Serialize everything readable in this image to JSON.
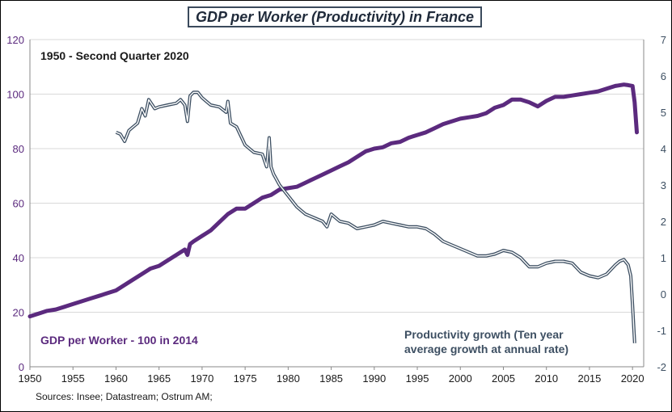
{
  "chart_data": {
    "type": "line",
    "title": "GDP per Worker (Productivity) in France",
    "subtitle": "1950 - Second Quarter 2020",
    "source": "Sources: Insee; Datastream; Ostrum AM;",
    "x_ticks": [
      "1950",
      "1955",
      "1960",
      "1965",
      "1970",
      "1975",
      "1980",
      "1985",
      "1990",
      "1995",
      "2000",
      "2005",
      "2010",
      "2015",
      "2020"
    ],
    "xlim": [
      1950,
      2021.3
    ],
    "y_left": {
      "ylim": [
        0,
        120
      ],
      "ticks": [
        "0",
        "20",
        "40",
        "60",
        "80",
        "100",
        "120"
      ]
    },
    "y_right": {
      "ylim": [
        -2,
        7
      ],
      "ticks": [
        "-2",
        "-1",
        "0",
        "1",
        "2",
        "3",
        "4",
        "5",
        "6",
        "7"
      ]
    },
    "grid": true,
    "series": [
      {
        "name": "GDP per Worker - 100 in 2014",
        "axis": "left",
        "color": "#5b2a7e",
        "x": [
          1950,
          1951,
          1952,
          1953,
          1954,
          1955,
          1956,
          1957,
          1958,
          1959,
          1960,
          1961,
          1962,
          1963,
          1964,
          1965,
          1966,
          1967,
          1968,
          1968.3,
          1968.6,
          1969,
          1970,
          1971,
          1972,
          1973,
          1974,
          1975,
          1976,
          1977,
          1978,
          1979,
          1980,
          1981,
          1982,
          1983,
          1984,
          1985,
          1986,
          1987,
          1988,
          1989,
          1990,
          1991,
          1992,
          1993,
          1994,
          1995,
          1996,
          1997,
          1998,
          1999,
          2000,
          2001,
          2002,
          2003,
          2004,
          2005,
          2006,
          2007,
          2008,
          2009,
          2010,
          2011,
          2012,
          2013,
          2014,
          2015,
          2016,
          2017,
          2018,
          2019,
          2019.5,
          2020,
          2020.25,
          2020.5
        ],
        "values": [
          18.5,
          19.5,
          20.5,
          21,
          22,
          23,
          24,
          25,
          26,
          27,
          28,
          30,
          32,
          34,
          36,
          37,
          39,
          41,
          43,
          41,
          45,
          46,
          48,
          50,
          53,
          56,
          58,
          58,
          60,
          62,
          63,
          65,
          65.5,
          66,
          67.5,
          69,
          70.5,
          72,
          73.5,
          75,
          77,
          79,
          80,
          80.5,
          82,
          82.5,
          84,
          85,
          86,
          87.5,
          89,
          90,
          91,
          91.5,
          92,
          93,
          95,
          96,
          98,
          98,
          97,
          95.5,
          97.5,
          99,
          99,
          99.5,
          100,
          100.5,
          101,
          102,
          103,
          103.5,
          103.3,
          103,
          97,
          86
        ]
      },
      {
        "name": "Productivity growth (Ten year average growth at annual rate)",
        "axis": "right",
        "color": "#3d4f62",
        "x": [
          1960,
          1960.5,
          1961,
          1961.5,
          1962,
          1962.5,
          1963,
          1963.4,
          1963.8,
          1964.5,
          1965,
          1966,
          1967,
          1967.5,
          1968,
          1968.3,
          1968.6,
          1969,
          1969.5,
          1970,
          1971,
          1972,
          1972.8,
          1973,
          1973.3,
          1974,
          1975,
          1976,
          1977,
          1977.5,
          1977.8,
          1978,
          1978.3,
          1979,
          1980,
          1981,
          1982,
          1983,
          1984,
          1984.5,
          1985,
          1986,
          1987,
          1988,
          1989,
          1990,
          1991,
          1992,
          1993,
          1994,
          1995,
          1996,
          1997,
          1998,
          1999,
          2000,
          2001,
          2002,
          2003,
          2004,
          2005,
          2006,
          2007,
          2008,
          2009,
          2010,
          2011,
          2012,
          2013,
          2014,
          2015,
          2016,
          2017,
          2018,
          2018.5,
          2019,
          2019.5,
          2019.8,
          2020,
          2020.25
        ],
        "values": [
          4.45,
          4.4,
          4.2,
          4.5,
          4.6,
          4.7,
          5.1,
          4.9,
          5.35,
          5.1,
          5.15,
          5.2,
          5.25,
          5.35,
          5.2,
          4.75,
          5.45,
          5.55,
          5.55,
          5.4,
          5.2,
          5.15,
          5.0,
          5.3,
          4.7,
          4.6,
          4.1,
          3.9,
          3.85,
          3.5,
          4.3,
          3.5,
          3.3,
          3.0,
          2.7,
          2.4,
          2.2,
          2.1,
          2.0,
          1.85,
          2.2,
          2.0,
          1.95,
          1.8,
          1.85,
          1.9,
          2.0,
          1.95,
          1.9,
          1.85,
          1.85,
          1.8,
          1.65,
          1.45,
          1.35,
          1.25,
          1.15,
          1.05,
          1.05,
          1.1,
          1.2,
          1.15,
          1.0,
          0.75,
          0.75,
          0.85,
          0.9,
          0.9,
          0.85,
          0.6,
          0.5,
          0.45,
          0.55,
          0.8,
          0.9,
          0.95,
          0.8,
          0.5,
          -0.3,
          -1.35
        ]
      }
    ],
    "annotations": [
      {
        "text": "GDP per Worker - 100 in 2014",
        "color": "#5b2a7e"
      },
      {
        "text": "Productivity growth (Ten year",
        "color": "#3d4f62"
      },
      {
        "text": "average growth at annual rate)",
        "color": "#3d4f62"
      }
    ]
  }
}
